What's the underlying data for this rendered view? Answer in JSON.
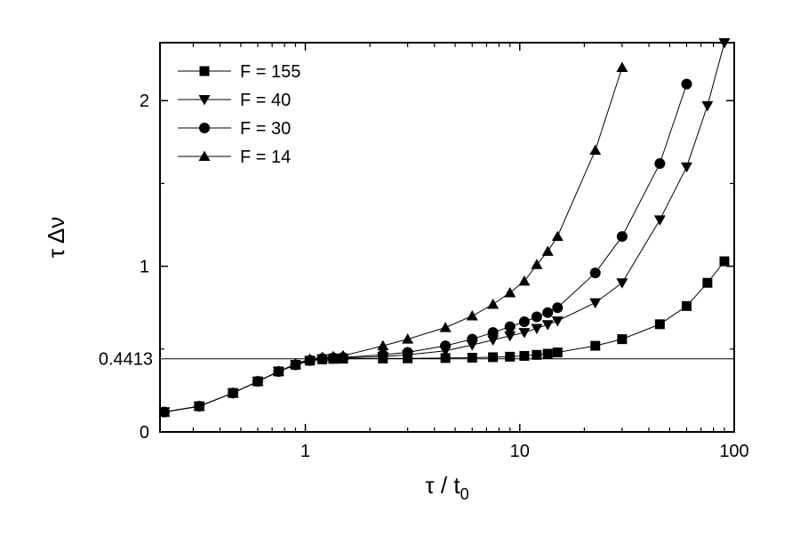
{
  "chart_data": {
    "type": "line",
    "title": "",
    "xlabel": "τ / t",
    "xlabel_sub": "0",
    "ylabel": "τ Δν",
    "x_scale": "log",
    "xlim": [
      0.21,
      100
    ],
    "ylim": [
      0,
      2.35
    ],
    "x_ticks": [
      1,
      10,
      100
    ],
    "x_tick_labels": [
      "1",
      "10",
      "100"
    ],
    "y_ticks": [
      0,
      1,
      2
    ],
    "y_tick_labels": [
      "0",
      "1",
      "2"
    ],
    "reference_line": {
      "y": 0.4413,
      "label": "0.4413"
    },
    "grid": false,
    "legend_position": "top-left",
    "series": [
      {
        "name": "F = 155",
        "marker": "square",
        "x": [
          0.22,
          0.32,
          0.46,
          0.6,
          0.75,
          0.9,
          1.05,
          1.2,
          1.35,
          1.5,
          2.3,
          3.0,
          4.5,
          6.0,
          7.5,
          9.0,
          10.5,
          12.0,
          13.5,
          15.0,
          22.5,
          30.0,
          45.0,
          60.0,
          75.0,
          90.0
        ],
        "y": [
          0.12,
          0.155,
          0.235,
          0.305,
          0.365,
          0.405,
          0.43,
          0.438,
          0.441,
          0.442,
          0.443,
          0.444,
          0.446,
          0.448,
          0.451,
          0.454,
          0.459,
          0.465,
          0.472,
          0.48,
          0.52,
          0.56,
          0.65,
          0.76,
          0.9,
          1.03
        ]
      },
      {
        "name": "F = 40",
        "marker": "triangle-down",
        "x": [
          0.22,
          0.32,
          0.46,
          0.6,
          0.75,
          0.9,
          1.05,
          1.2,
          1.35,
          1.5,
          2.3,
          3.0,
          4.5,
          6.0,
          7.5,
          9.0,
          10.5,
          12.0,
          13.5,
          15.0,
          22.5,
          30.0,
          45.0,
          60.0,
          75.0,
          90.0
        ],
        "y": [
          0.12,
          0.155,
          0.235,
          0.305,
          0.365,
          0.405,
          0.43,
          0.441,
          0.444,
          0.446,
          0.455,
          0.465,
          0.49,
          0.525,
          0.555,
          0.58,
          0.6,
          0.625,
          0.648,
          0.67,
          0.78,
          0.9,
          1.28,
          1.6,
          1.97,
          2.35
        ]
      },
      {
        "name": "F = 30",
        "marker": "circle",
        "x": [
          0.22,
          0.32,
          0.46,
          0.6,
          0.75,
          0.9,
          1.05,
          1.2,
          1.35,
          1.5,
          2.3,
          3.0,
          4.5,
          6.0,
          7.5,
          9.0,
          10.5,
          12.0,
          13.5,
          15.0,
          22.5,
          30.0,
          45.0,
          60.0
        ],
        "y": [
          0.12,
          0.155,
          0.235,
          0.305,
          0.365,
          0.405,
          0.432,
          0.443,
          0.447,
          0.45,
          0.465,
          0.48,
          0.52,
          0.56,
          0.6,
          0.635,
          0.665,
          0.695,
          0.72,
          0.75,
          0.96,
          1.18,
          1.62,
          2.1
        ]
      },
      {
        "name": "F = 14",
        "marker": "triangle-up",
        "x": [
          0.22,
          0.32,
          0.46,
          0.6,
          0.75,
          0.9,
          1.05,
          1.2,
          1.35,
          1.5,
          2.3,
          3.0,
          4.5,
          6.0,
          7.5,
          9.0,
          10.5,
          12.0,
          13.5,
          15.0,
          22.5,
          30.0
        ],
        "y": [
          0.12,
          0.155,
          0.235,
          0.305,
          0.365,
          0.41,
          0.44,
          0.45,
          0.455,
          0.46,
          0.52,
          0.56,
          0.63,
          0.7,
          0.77,
          0.84,
          0.91,
          1.01,
          1.09,
          1.18,
          1.7,
          2.2
        ]
      }
    ]
  }
}
